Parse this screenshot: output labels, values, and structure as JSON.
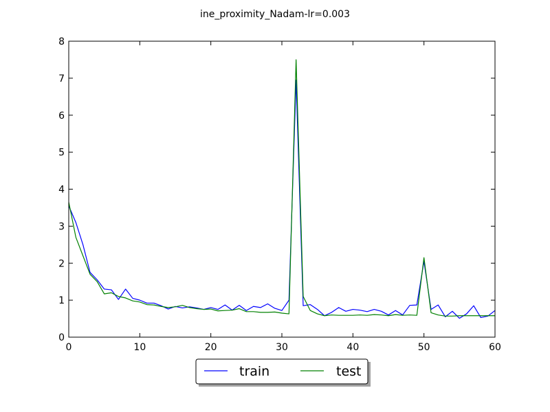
{
  "chart_data": {
    "type": "line",
    "title": "ine_proximity_Nadam-lr=0.003",
    "xlabel": "",
    "ylabel": "",
    "xlim": [
      0,
      60
    ],
    "ylim": [
      0,
      8
    ],
    "xticks": [
      0,
      10,
      20,
      30,
      40,
      50,
      60
    ],
    "yticks": [
      0,
      1,
      2,
      3,
      4,
      5,
      6,
      7,
      8
    ],
    "grid": false,
    "legend_position": "bottom-center, below axes",
    "x": [
      0,
      1,
      2,
      3,
      4,
      5,
      6,
      7,
      8,
      9,
      10,
      11,
      12,
      13,
      14,
      15,
      16,
      17,
      18,
      19,
      20,
      21,
      22,
      23,
      24,
      25,
      26,
      27,
      28,
      29,
      30,
      31,
      32,
      33,
      34,
      35,
      36,
      37,
      38,
      39,
      40,
      41,
      42,
      43,
      44,
      45,
      46,
      47,
      48,
      49,
      50,
      51,
      52,
      53,
      54,
      55,
      56,
      57,
      58,
      59,
      60
    ],
    "series": [
      {
        "name": "train",
        "color": "#0000ff",
        "values": [
          3.55,
          3.1,
          2.5,
          1.75,
          1.55,
          1.3,
          1.28,
          1.02,
          1.3,
          1.05,
          1.0,
          0.92,
          0.92,
          0.85,
          0.76,
          0.83,
          0.79,
          0.82,
          0.79,
          0.75,
          0.8,
          0.75,
          0.87,
          0.73,
          0.86,
          0.72,
          0.83,
          0.8,
          0.9,
          0.78,
          0.72,
          1.0,
          6.95,
          0.85,
          0.88,
          0.75,
          0.58,
          0.67,
          0.8,
          0.7,
          0.75,
          0.73,
          0.69,
          0.75,
          0.7,
          0.6,
          0.72,
          0.6,
          0.86,
          0.87,
          2.05,
          0.75,
          0.87,
          0.55,
          0.7,
          0.51,
          0.63,
          0.85,
          0.53,
          0.57,
          0.72
        ]
      },
      {
        "name": "test",
        "color": "#008000",
        "values": [
          3.65,
          2.7,
          2.2,
          1.7,
          1.5,
          1.17,
          1.2,
          1.1,
          1.06,
          0.98,
          0.95,
          0.88,
          0.87,
          0.83,
          0.8,
          0.82,
          0.86,
          0.8,
          0.77,
          0.75,
          0.76,
          0.71,
          0.72,
          0.73,
          0.77,
          0.69,
          0.69,
          0.67,
          0.67,
          0.68,
          0.65,
          0.63,
          7.5,
          1.1,
          0.72,
          0.63,
          0.58,
          0.6,
          0.59,
          0.59,
          0.59,
          0.6,
          0.59,
          0.61,
          0.6,
          0.58,
          0.61,
          0.59,
          0.6,
          0.59,
          2.15,
          0.66,
          0.6,
          0.57,
          0.57,
          0.58,
          0.58,
          0.58,
          0.58,
          0.58,
          0.58
        ]
      }
    ]
  }
}
